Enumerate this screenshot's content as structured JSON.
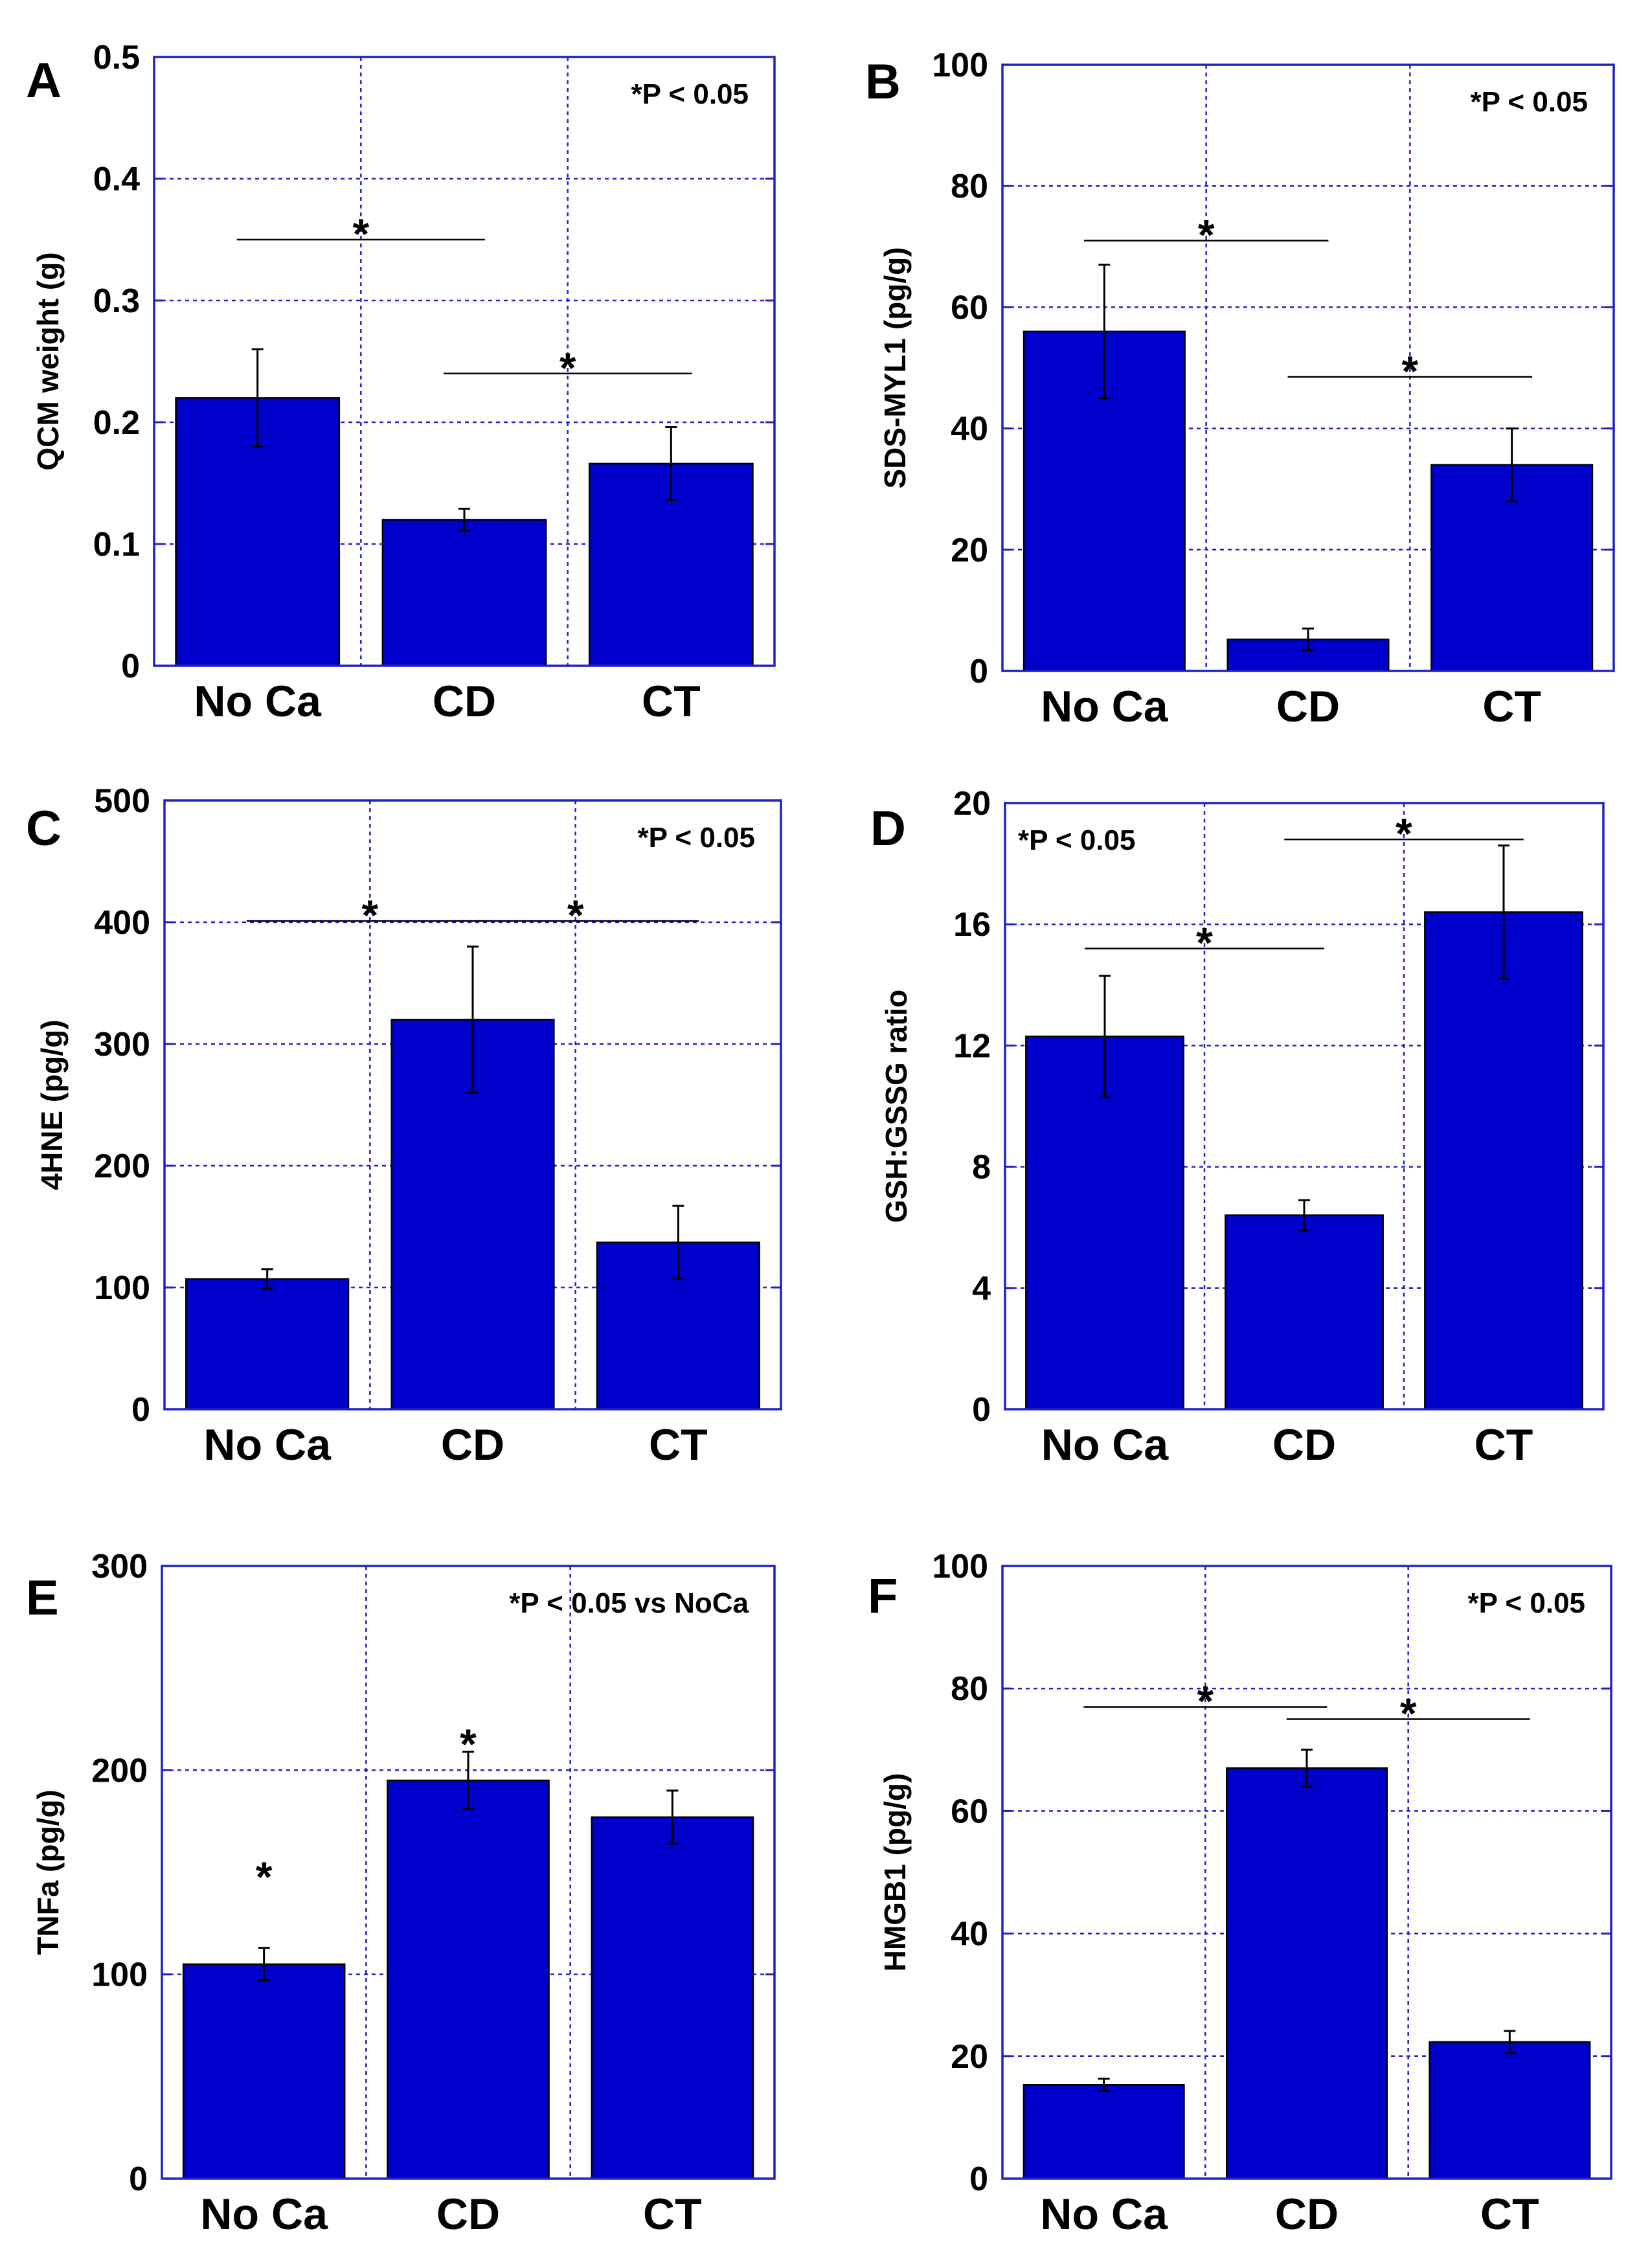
{
  "colors": {
    "bar": "#0000cc",
    "frame": "#2020c8",
    "grid": "#2020c8",
    "text": "#000000"
  },
  "chart_data": [
    {
      "panel": "A",
      "type": "bar",
      "categories": [
        "No Ca",
        "CD",
        "CT"
      ],
      "values": [
        0.22,
        0.12,
        0.166
      ],
      "errors": [
        0.04,
        0.009,
        0.03
      ],
      "ylabel": "QCM weight (g)",
      "ylim": [
        0,
        0.5
      ],
      "yticks": [
        0,
        0.1,
        0.2,
        0.3,
        0.4,
        0.5
      ],
      "ytick_labels": [
        "0",
        "0.1",
        "0.2",
        "0.3",
        "0.4",
        "0.5"
      ],
      "note": "*P < 0.05",
      "note_pos": "top-right",
      "significance": [
        {
          "from": 0,
          "to": 1,
          "y": 0.35,
          "label": "*"
        },
        {
          "from": 1,
          "to": 2,
          "y": 0.24,
          "label": "*"
        }
      ]
    },
    {
      "panel": "B",
      "type": "bar",
      "categories": [
        "No Ca",
        "CD",
        "CT"
      ],
      "values": [
        56,
        5.2,
        34
      ],
      "errors": [
        11,
        1.8,
        6
      ],
      "ylabel": "SDS-MYL1 (pg/g)",
      "ylim": [
        0,
        100
      ],
      "yticks": [
        0,
        20,
        40,
        60,
        80,
        100
      ],
      "ytick_labels": [
        "0",
        "20",
        "40",
        "60",
        "80",
        "100"
      ],
      "note": "*P < 0.05",
      "note_pos": "top-right",
      "significance": [
        {
          "from": 0,
          "to": 1,
          "y": 71,
          "label": "*"
        },
        {
          "from": 1,
          "to": 2,
          "y": 48.5,
          "label": "*"
        }
      ]
    },
    {
      "panel": "C",
      "type": "bar",
      "categories": [
        "No Ca",
        "CD",
        "CT"
      ],
      "values": [
        107,
        320,
        137
      ],
      "errors": [
        8,
        60,
        30
      ],
      "ylabel": "4HNE (pg/g)",
      "ylim": [
        0,
        500
      ],
      "yticks": [
        0,
        100,
        200,
        300,
        400,
        500
      ],
      "ytick_labels": [
        "0",
        "100",
        "200",
        "300",
        "400",
        "500"
      ],
      "note": "*P < 0.05",
      "note_pos": "top-right",
      "significance": [
        {
          "from": 0,
          "to": 1,
          "y": 401,
          "label": "*"
        },
        {
          "from": 1,
          "to": 2,
          "y": 401,
          "label": "*"
        }
      ]
    },
    {
      "panel": "D",
      "type": "bar",
      "categories": [
        "No Ca",
        "CD",
        "CT"
      ],
      "values": [
        12.3,
        6.4,
        16.4
      ],
      "errors": [
        2.0,
        0.5,
        2.2
      ],
      "ylabel": "GSH:GSSG ratio",
      "ylim": [
        0,
        20
      ],
      "yticks": [
        0,
        4,
        8,
        12,
        16,
        20
      ],
      "ytick_labels": [
        "0",
        "4",
        "8",
        "12",
        "16",
        "20"
      ],
      "note": "*P < 0.05",
      "note_pos": "top-left",
      "significance": [
        {
          "from": 0,
          "to": 1,
          "y": 15.2,
          "label": "*"
        },
        {
          "from": 1,
          "to": 2,
          "y": 18.8,
          "label": "*"
        }
      ]
    },
    {
      "panel": "E",
      "type": "bar",
      "categories": [
        "No Ca",
        "CD",
        "CT"
      ],
      "values": [
        105,
        195,
        177
      ],
      "errors": [
        8,
        14,
        13
      ],
      "ylabel": "TNFa (pg/g)",
      "ylim": [
        0,
        300
      ],
      "yticks": [
        0,
        100,
        200,
        300
      ],
      "ytick_labels": [
        "0",
        "100",
        "200",
        "300"
      ],
      "note": "*P < 0.05 vs NoCa",
      "note_pos": "top-right",
      "single_stars": [
        {
          "index": 0,
          "y": 150,
          "label": "*"
        },
        {
          "index": 1,
          "y": 215,
          "label": "*"
        }
      ]
    },
    {
      "panel": "F",
      "type": "bar",
      "categories": [
        "No Ca",
        "CD",
        "CT"
      ],
      "values": [
        15.3,
        67,
        22.3
      ],
      "errors": [
        1.0,
        3.0,
        1.8
      ],
      "ylabel": "HMGB1 (pg/g)",
      "ylim": [
        0,
        100
      ],
      "yticks": [
        0,
        20,
        40,
        60,
        80,
        100
      ],
      "ytick_labels": [
        "0",
        "20",
        "40",
        "60",
        "80",
        "100"
      ],
      "note": "*P < 0.05",
      "note_pos": "top-right",
      "significance": [
        {
          "from": 0,
          "to": 1,
          "y": 77,
          "label": "*"
        },
        {
          "from": 1,
          "to": 2,
          "y": 75,
          "label": "*"
        }
      ]
    }
  ]
}
